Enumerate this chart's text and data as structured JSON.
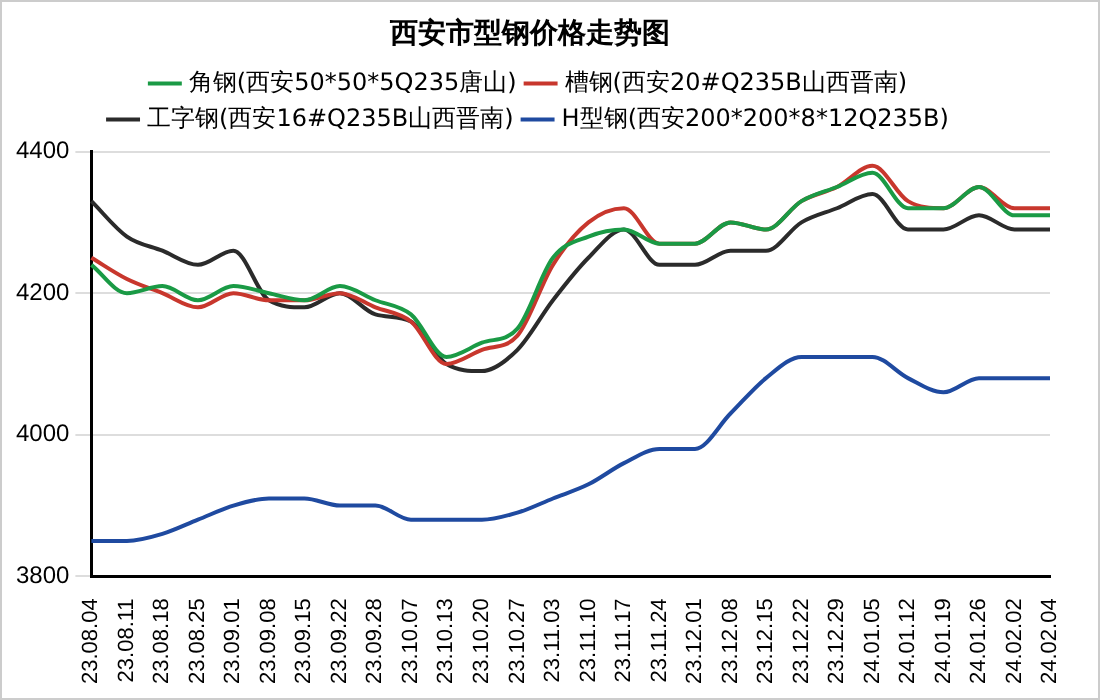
{
  "chart_data": {
    "type": "line",
    "title": "西安市型钢价格走势图",
    "categories": [
      "23.08.04",
      "23.08.11",
      "23.08.18",
      "23.08.25",
      "23.09.01",
      "23.09.08",
      "23.09.15",
      "23.09.22",
      "23.09.28",
      "23.10.07",
      "23.10.13",
      "23.10.20",
      "23.10.27",
      "23.11.03",
      "23.11.10",
      "23.11.17",
      "23.11.24",
      "23.12.01",
      "23.12.08",
      "23.12.15",
      "23.12.22",
      "23.12.29",
      "24.01.05",
      "24.01.12",
      "24.01.19",
      "24.01.26",
      "24.02.02",
      "24.02.04"
    ],
    "series": [
      {
        "name": "角钢(西安50*50*5Q235唐山)",
        "color": "#1a9a45",
        "values": [
          4240,
          4200,
          4210,
          4190,
          4210,
          4200,
          4190,
          4210,
          4190,
          4170,
          4110,
          4130,
          4150,
          4250,
          4280,
          4290,
          4270,
          4270,
          4300,
          4290,
          4330,
          4350,
          4370,
          4320,
          4320,
          4350,
          4310,
          4310
        ]
      },
      {
        "name": "槽钢(西安20#Q235B山西晋南)",
        "color": "#c8372d",
        "values": [
          4250,
          4220,
          4200,
          4180,
          4200,
          4190,
          4190,
          4200,
          4180,
          4160,
          4100,
          4120,
          4140,
          4240,
          4300,
          4320,
          4270,
          4270,
          4300,
          4290,
          4330,
          4350,
          4380,
          4330,
          4320,
          4350,
          4320,
          4320
        ]
      },
      {
        "name": "工字钢(西安16#Q235B山西晋南)",
        "color": "#2b2b2b",
        "values": [
          4330,
          4280,
          4260,
          4240,
          4260,
          4190,
          4180,
          4200,
          4170,
          4160,
          4100,
          4090,
          4120,
          4190,
          4250,
          4290,
          4240,
          4240,
          4260,
          4260,
          4300,
          4320,
          4340,
          4290,
          4290,
          4310,
          4290,
          4290
        ]
      },
      {
        "name": "H型钢(西安200*200*8*12Q235B)",
        "color": "#1f4aa0",
        "values": [
          3850,
          3850,
          3860,
          3880,
          3900,
          3910,
          3910,
          3900,
          3900,
          3880,
          3880,
          3880,
          3890,
          3910,
          3930,
          3960,
          3980,
          3980,
          4030,
          4080,
          4110,
          4110,
          4110,
          4080,
          4060,
          4080,
          4080,
          4080
        ]
      }
    ],
    "ylim": [
      3800,
      4400
    ],
    "yticks": [
      3800,
      4000,
      4200,
      4400
    ],
    "grid": "y",
    "legend": "top",
    "marker": "none",
    "line_style": "solid"
  }
}
